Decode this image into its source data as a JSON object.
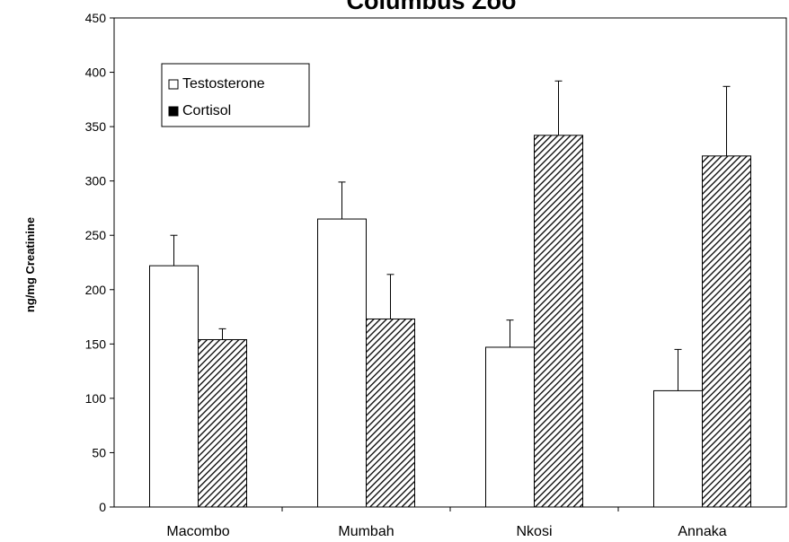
{
  "chart_data": {
    "type": "bar",
    "title": "Columbus Zoo",
    "xlabel": "",
    "ylabel": "ng/mg Creatinine",
    "ylim": [
      0,
      450
    ],
    "yticks": [
      0,
      50,
      100,
      150,
      200,
      250,
      300,
      350,
      400,
      450
    ],
    "grid": false,
    "legend_position": "top-left",
    "categories": [
      "Macombo",
      "Mumbah",
      "Nkosi",
      "Annaka"
    ],
    "series": [
      {
        "name": "Testosterone",
        "fill": "white",
        "color": "#ffffff",
        "values": [
          222,
          265,
          147,
          107
        ],
        "errors": [
          28,
          34,
          25,
          38
        ]
      },
      {
        "name": "Cortisol",
        "fill": "hatched",
        "color": "#000000",
        "values": [
          154,
          173,
          342,
          323
        ],
        "errors": [
          10,
          41,
          50,
          64
        ]
      }
    ]
  }
}
